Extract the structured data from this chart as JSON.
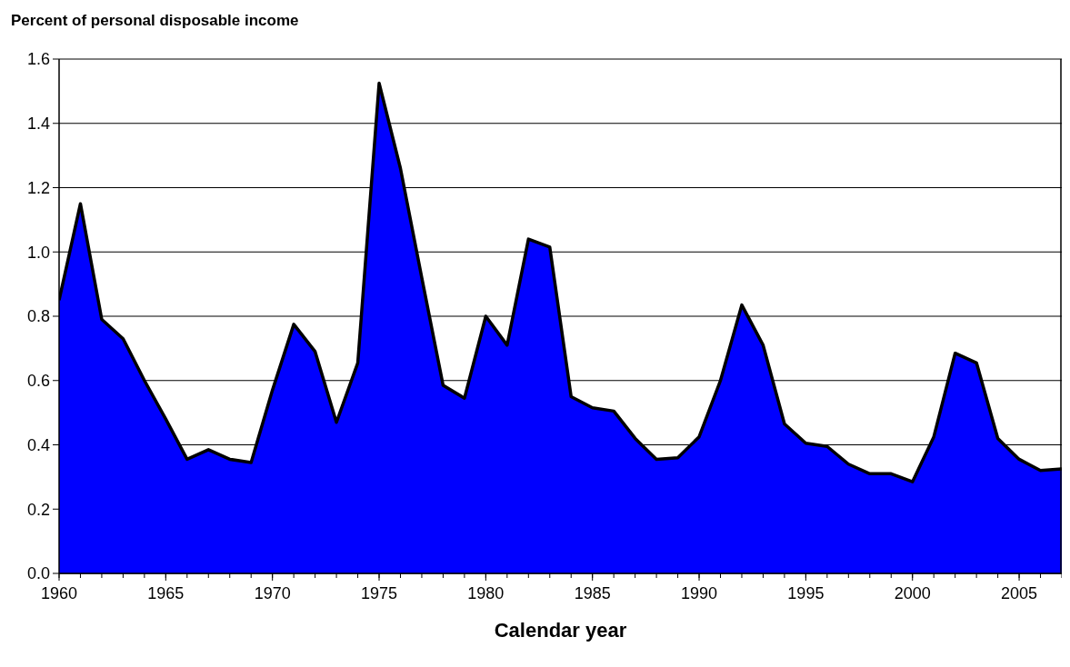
{
  "chart_data": {
    "type": "area",
    "title": "Percent of personal disposable income",
    "xlabel": "Calendar year",
    "x": [
      1960,
      1961,
      1962,
      1963,
      1964,
      1965,
      1966,
      1967,
      1968,
      1969,
      1970,
      1971,
      1972,
      1973,
      1974,
      1975,
      1976,
      1977,
      1978,
      1979,
      1980,
      1981,
      1982,
      1983,
      1984,
      1985,
      1986,
      1987,
      1988,
      1989,
      1990,
      1991,
      1992,
      1993,
      1994,
      1995,
      1996,
      1997,
      1998,
      1999,
      2000,
      2001,
      2002,
      2003,
      2004,
      2005,
      2006,
      2007
    ],
    "series": [
      {
        "color": "#0000ff",
        "values": [
          0.85,
          1.15,
          0.79,
          0.73,
          0.6,
          0.48,
          0.355,
          0.385,
          0.355,
          0.345,
          0.57,
          0.775,
          0.69,
          0.47,
          0.655,
          1.525,
          1.26,
          0.92,
          0.585,
          0.545,
          0.8,
          0.71,
          1.04,
          1.015,
          0.55,
          0.515,
          0.505,
          0.42,
          0.355,
          0.36,
          0.425,
          0.6,
          0.835,
          0.71,
          0.465,
          0.405,
          0.395,
          0.34,
          0.31,
          0.31,
          0.285,
          0.425,
          0.685,
          0.655,
          0.42,
          0.355,
          0.32,
          0.325
        ]
      }
    ],
    "xlim": [
      1960,
      2007
    ],
    "xticks": [
      1960,
      1965,
      1970,
      1975,
      1980,
      1985,
      1990,
      1995,
      2000,
      2005
    ],
    "ylim": [
      0,
      1.6
    ],
    "yticks": [
      {
        "value": 0,
        "label": "0.0"
      },
      {
        "value": 0.2,
        "label": "0.2"
      },
      {
        "value": 0.4,
        "label": "0.4"
      },
      {
        "value": 0.6,
        "label": "0.6"
      },
      {
        "value": 0.8,
        "label": "0.8"
      },
      {
        "value": 1,
        "label": "1.0"
      },
      {
        "value": 1.2,
        "label": "1.2"
      },
      {
        "value": 1.4,
        "label": "1.4"
      },
      {
        "value": 1.6,
        "label": "1.6"
      }
    ],
    "grid": "y"
  }
}
